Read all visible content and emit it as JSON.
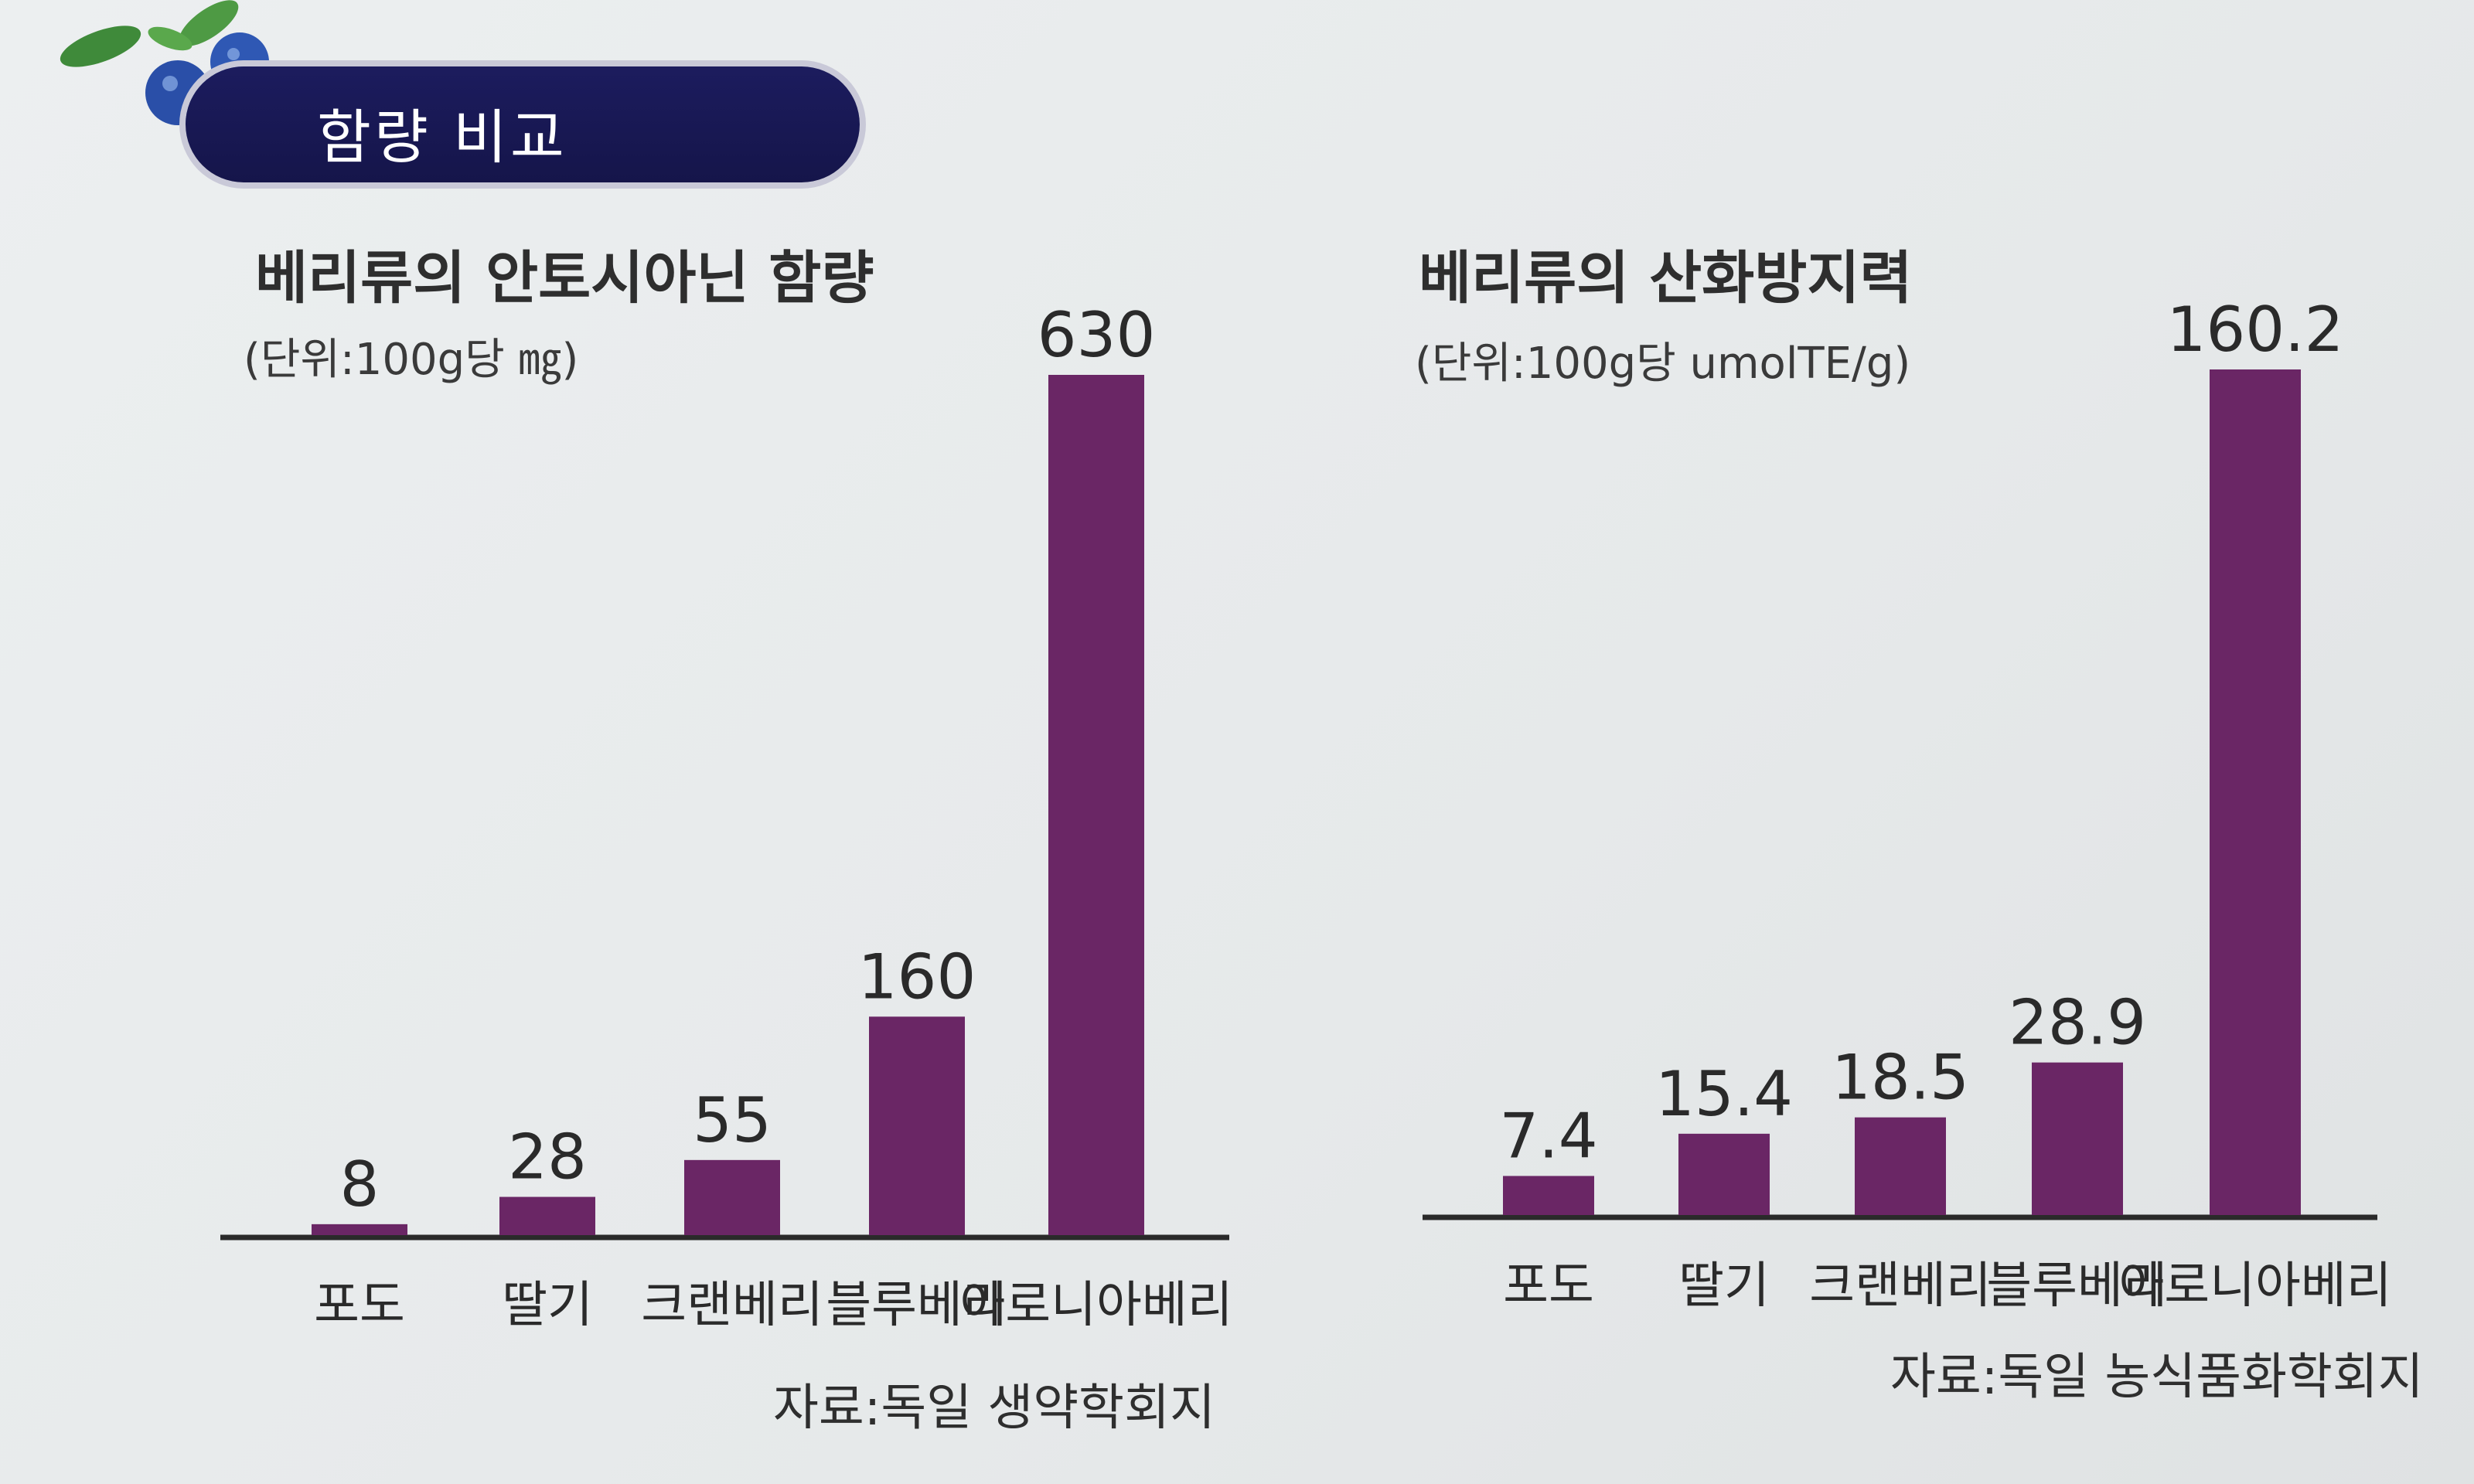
{
  "header": {
    "title": "함량 비교"
  },
  "colors": {
    "bar": "#6a2665",
    "header_bg": "#1c1c5e",
    "axis": "#2a2a2a"
  },
  "chart_data": [
    {
      "type": "bar",
      "title": "베리류의 안토시아닌 함량",
      "unit": "(단위:100g당 ㎎)",
      "source": "자료:독일 생약학회지",
      "categories": [
        "포도",
        "딸기",
        "크랜베리",
        "블루베리",
        "아로니아베리"
      ],
      "values": [
        8,
        28,
        55,
        160,
        630
      ],
      "value_labels": [
        "8",
        "28",
        "55",
        "160",
        "630"
      ],
      "ylim": [
        0,
        630
      ]
    },
    {
      "type": "bar",
      "title": "베리류의 산화방지력",
      "unit": "(단위:100g당 umolTE/g)",
      "source": "자료:독일 농식품화학회지",
      "categories": [
        "포도",
        "딸기",
        "크랜베리",
        "블루베리",
        "아로니아베리"
      ],
      "values": [
        7.4,
        15.4,
        18.5,
        28.9,
        160.2
      ],
      "value_labels": [
        "7.4",
        "15.4",
        "18.5",
        "28.9",
        "160.2"
      ],
      "ylim": [
        0,
        160.2
      ]
    }
  ]
}
